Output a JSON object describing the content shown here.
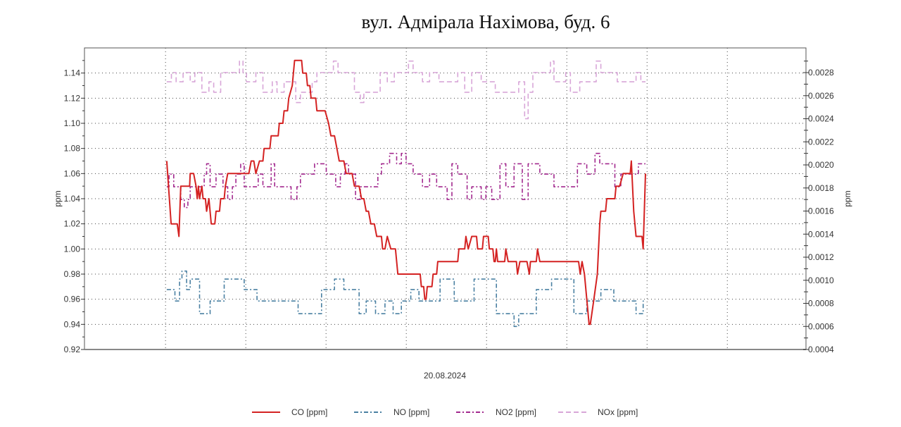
{
  "chart_data": {
    "type": "line",
    "title": "вул. Адмірала Нахімова, буд. 6",
    "xlabel": "20.08.2024",
    "ylabel_left": "ppm",
    "ylabel_right": "ppm",
    "xlim": [
      -10.1,
      79.8
    ],
    "x_grid": [
      0,
      10,
      20,
      30,
      40,
      50,
      60,
      70
    ],
    "ylim_left": [
      0.92,
      1.16
    ],
    "ylim_right": [
      0.0004,
      0.003014
    ],
    "left_ticks": [
      "0.92",
      "0.94",
      "0.96",
      "0.98",
      "1.00",
      "1.02",
      "1.04",
      "1.06",
      "1.08",
      "1.10",
      "1.12",
      "1.14"
    ],
    "right_ticks": [
      "0.0004",
      "0.0006",
      "0.0008",
      "0.0010",
      "0.0012",
      "0.0014",
      "0.0016",
      "0.0018",
      "0.0020",
      "0.0022",
      "0.0024",
      "0.0026",
      "0.0028"
    ],
    "grid": true,
    "legend_position": "bottom",
    "series": [
      {
        "name": "CO [ppm]",
        "axis": "left",
        "color": "#d42222",
        "style": "solid",
        "step": false,
        "points": [
          [
            0.15,
            1.07
          ],
          [
            0.7,
            1.02
          ],
          [
            1.46,
            1.02
          ],
          [
            1.67,
            1.01
          ],
          [
            1.9,
            1.05
          ],
          [
            3.0,
            1.05
          ],
          [
            3.07,
            1.06
          ],
          [
            3.5,
            1.06
          ],
          [
            3.8,
            1.05
          ],
          [
            3.95,
            1.04
          ],
          [
            4.1,
            1.05
          ],
          [
            4.24,
            1.04
          ],
          [
            4.53,
            1.05
          ],
          [
            4.68,
            1.04
          ],
          [
            4.97,
            1.04
          ],
          [
            5.12,
            1.03
          ],
          [
            5.41,
            1.04
          ],
          [
            5.7,
            1.02
          ],
          [
            6.14,
            1.02
          ],
          [
            6.29,
            1.03
          ],
          [
            6.73,
            1.03
          ],
          [
            6.87,
            1.04
          ],
          [
            7.31,
            1.04
          ],
          [
            7.46,
            1.05
          ],
          [
            7.75,
            1.06
          ],
          [
            10.38,
            1.06
          ],
          [
            10.67,
            1.07
          ],
          [
            11.0,
            1.07
          ],
          [
            11.26,
            1.06
          ],
          [
            11.7,
            1.07
          ],
          [
            12.13,
            1.07
          ],
          [
            12.28,
            1.08
          ],
          [
            13.0,
            1.08
          ],
          [
            13.16,
            1.09
          ],
          [
            14.04,
            1.09
          ],
          [
            14.18,
            1.1
          ],
          [
            14.62,
            1.1
          ],
          [
            14.77,
            1.11
          ],
          [
            15.2,
            1.11
          ],
          [
            15.35,
            1.12
          ],
          [
            15.79,
            1.13
          ],
          [
            16.08,
            1.15
          ],
          [
            16.96,
            1.15
          ],
          [
            17.1,
            1.14
          ],
          [
            17.54,
            1.14
          ],
          [
            17.69,
            1.13
          ],
          [
            17.98,
            1.13
          ],
          [
            18.13,
            1.12
          ],
          [
            18.71,
            1.12
          ],
          [
            18.86,
            1.11
          ],
          [
            19.88,
            1.11
          ],
          [
            20.32,
            1.1
          ],
          [
            20.61,
            1.09
          ],
          [
            21.05,
            1.09
          ],
          [
            21.35,
            1.08
          ],
          [
            21.64,
            1.07
          ],
          [
            22.22,
            1.07
          ],
          [
            22.51,
            1.06
          ],
          [
            23.25,
            1.06
          ],
          [
            23.54,
            1.05
          ],
          [
            24.12,
            1.05
          ],
          [
            24.42,
            1.04
          ],
          [
            24.71,
            1.04
          ],
          [
            25.0,
            1.03
          ],
          [
            25.29,
            1.03
          ],
          [
            25.58,
            1.02
          ],
          [
            26.02,
            1.02
          ],
          [
            26.32,
            1.01
          ],
          [
            26.9,
            1.01
          ],
          [
            27.05,
            1.0
          ],
          [
            27.34,
            1.0
          ],
          [
            27.63,
            1.01
          ],
          [
            28.07,
            1.0
          ],
          [
            28.65,
            1.0
          ],
          [
            28.95,
            0.98
          ],
          [
            31.73,
            0.98
          ],
          [
            31.88,
            0.97
          ],
          [
            32.17,
            0.97
          ],
          [
            32.31,
            0.96
          ],
          [
            32.46,
            0.96
          ],
          [
            32.61,
            0.97
          ],
          [
            33.19,
            0.97
          ],
          [
            33.34,
            0.98
          ],
          [
            33.78,
            0.98
          ],
          [
            33.92,
            0.99
          ],
          [
            36.41,
            0.99
          ],
          [
            36.55,
            1.0
          ],
          [
            37.28,
            1.0
          ],
          [
            37.43,
            1.01
          ],
          [
            37.72,
            1.0
          ],
          [
            38.16,
            1.01
          ],
          [
            38.75,
            1.01
          ],
          [
            38.89,
            1.0
          ],
          [
            39.48,
            1.0
          ],
          [
            39.62,
            1.01
          ],
          [
            40.21,
            1.01
          ],
          [
            40.35,
            1.0
          ],
          [
            40.79,
            1.0
          ],
          [
            40.94,
            0.99
          ],
          [
            41.09,
            0.99
          ],
          [
            41.23,
            1.0
          ],
          [
            41.38,
            0.99
          ],
          [
            42.26,
            0.99
          ],
          [
            42.4,
            1.0
          ],
          [
            42.69,
            0.99
          ],
          [
            43.72,
            0.99
          ],
          [
            43.86,
            0.98
          ],
          [
            44.16,
            0.99
          ],
          [
            45.03,
            0.99
          ],
          [
            45.33,
            0.98
          ],
          [
            45.47,
            0.99
          ],
          [
            46.2,
            0.99
          ],
          [
            46.35,
            1.0
          ],
          [
            46.64,
            0.99
          ],
          [
            51.47,
            0.99
          ],
          [
            51.67,
            0.98
          ],
          [
            51.9,
            0.99
          ],
          [
            52.2,
            0.98
          ],
          [
            52.49,
            0.96
          ],
          [
            52.78,
            0.94
          ],
          [
            52.93,
            0.94
          ],
          [
            53.37,
            0.96
          ],
          [
            53.8,
            0.98
          ],
          [
            54.1,
            1.02
          ],
          [
            54.24,
            1.03
          ],
          [
            54.83,
            1.03
          ],
          [
            54.98,
            1.04
          ],
          [
            55.99,
            1.04
          ],
          [
            56.14,
            1.05
          ],
          [
            56.58,
            1.05
          ],
          [
            57.02,
            1.06
          ],
          [
            57.9,
            1.06
          ],
          [
            58.04,
            1.07
          ],
          [
            58.34,
            1.03
          ],
          [
            58.63,
            1.01
          ],
          [
            59.36,
            1.01
          ],
          [
            59.51,
            1.0
          ],
          [
            59.8,
            1.06
          ]
        ]
      },
      {
        "name": "NO [ppm]",
        "axis": "right",
        "color": "#4a80a2",
        "style": "dashdot",
        "step": true,
        "points": [
          [
            0.15,
            0.00092
          ],
          [
            1.17,
            0.00082
          ],
          [
            1.75,
            0.00101
          ],
          [
            2.05,
            0.00108
          ],
          [
            2.63,
            0.00092
          ],
          [
            3.07,
            0.00101
          ],
          [
            4.24,
            0.00071
          ],
          [
            5.56,
            0.00082
          ],
          [
            7.31,
            0.00101
          ],
          [
            9.8,
            0.00092
          ],
          [
            11.4,
            0.00082
          ],
          [
            16.52,
            0.00071
          ],
          [
            19.44,
            0.00092
          ],
          [
            21.05,
            0.00101
          ],
          [
            22.22,
            0.00092
          ],
          [
            24.12,
            0.00071
          ],
          [
            25.0,
            0.00082
          ],
          [
            26.17,
            0.00071
          ],
          [
            27.34,
            0.00082
          ],
          [
            28.36,
            0.00071
          ],
          [
            29.39,
            0.00082
          ],
          [
            30.56,
            0.00092
          ],
          [
            31.58,
            0.00082
          ],
          [
            34.21,
            0.00101
          ],
          [
            35.97,
            0.00082
          ],
          [
            38.45,
            0.00101
          ],
          [
            41.23,
            0.00071
          ],
          [
            43.43,
            0.0006
          ],
          [
            44.01,
            0.00071
          ],
          [
            46.2,
            0.00092
          ],
          [
            48.1,
            0.00101
          ],
          [
            50.88,
            0.00071
          ],
          [
            52.49,
            0.00082
          ],
          [
            54.24,
            0.00092
          ],
          [
            55.86,
            0.00082
          ],
          [
            58.63,
            0.00071
          ],
          [
            59.51,
            0.00082
          ],
          [
            59.8,
            0.00082
          ]
        ]
      },
      {
        "name": "NO2 [ppm]",
        "axis": "right",
        "color": "#a2288e",
        "style": "dashdot",
        "step": true,
        "points": [
          [
            0.15,
            0.00181
          ],
          [
            0.44,
            0.00192
          ],
          [
            1.02,
            0.00181
          ],
          [
            1.9,
            0.0017
          ],
          [
            2.34,
            0.00163
          ],
          [
            2.78,
            0.0017
          ],
          [
            3.07,
            0.00181
          ],
          [
            4.82,
            0.00192
          ],
          [
            5.12,
            0.00201
          ],
          [
            5.56,
            0.00181
          ],
          [
            6.29,
            0.00192
          ],
          [
            7.16,
            0.00181
          ],
          [
            7.75,
            0.0017
          ],
          [
            8.33,
            0.00181
          ],
          [
            8.77,
            0.00192
          ],
          [
            9.36,
            0.00201
          ],
          [
            9.8,
            0.00181
          ],
          [
            11.55,
            0.00192
          ],
          [
            12.13,
            0.00181
          ],
          [
            13.16,
            0.00201
          ],
          [
            13.6,
            0.00181
          ],
          [
            15.64,
            0.0017
          ],
          [
            16.37,
            0.00181
          ],
          [
            16.81,
            0.00192
          ],
          [
            18.57,
            0.00201
          ],
          [
            20.03,
            0.00192
          ],
          [
            21.2,
            0.00181
          ],
          [
            21.78,
            0.00192
          ],
          [
            22.37,
            0.00201
          ],
          [
            22.81,
            0.00192
          ],
          [
            23.68,
            0.0017
          ],
          [
            24.27,
            0.00181
          ],
          [
            26.46,
            0.00192
          ],
          [
            26.9,
            0.00201
          ],
          [
            27.92,
            0.0021
          ],
          [
            28.8,
            0.00201
          ],
          [
            29.39,
            0.0021
          ],
          [
            29.97,
            0.00201
          ],
          [
            30.85,
            0.00192
          ],
          [
            32.02,
            0.00181
          ],
          [
            32.9,
            0.00192
          ],
          [
            33.78,
            0.00181
          ],
          [
            35.09,
            0.0017
          ],
          [
            35.68,
            0.00201
          ],
          [
            36.41,
            0.00192
          ],
          [
            37.58,
            0.0017
          ],
          [
            38.16,
            0.00181
          ],
          [
            39.33,
            0.0017
          ],
          [
            39.92,
            0.00181
          ],
          [
            40.65,
            0.0017
          ],
          [
            41.67,
            0.00201
          ],
          [
            42.4,
            0.00181
          ],
          [
            43.43,
            0.00201
          ],
          [
            44.45,
            0.0017
          ],
          [
            45.18,
            0.00201
          ],
          [
            46.64,
            0.00192
          ],
          [
            48.4,
            0.00181
          ],
          [
            51.32,
            0.00201
          ],
          [
            52.49,
            0.00192
          ],
          [
            53.51,
            0.0021
          ],
          [
            54.1,
            0.00201
          ],
          [
            55.99,
            0.00181
          ],
          [
            56.73,
            0.00192
          ],
          [
            58.92,
            0.00201
          ],
          [
            59.8,
            0.00201
          ]
        ]
      },
      {
        "name": "NOx [ppm]",
        "axis": "right",
        "color": "#d8a6d8",
        "style": "dashed",
        "step": true,
        "points": [
          [
            0.15,
            0.00272
          ],
          [
            0.73,
            0.0028
          ],
          [
            1.32,
            0.00272
          ],
          [
            2.19,
            0.0028
          ],
          [
            3.07,
            0.00272
          ],
          [
            3.65,
            0.0028
          ],
          [
            4.53,
            0.00263
          ],
          [
            5.41,
            0.00272
          ],
          [
            6.0,
            0.00263
          ],
          [
            6.87,
            0.0028
          ],
          [
            9.21,
            0.0029
          ],
          [
            9.65,
            0.0028
          ],
          [
            10.09,
            0.00272
          ],
          [
            11.26,
            0.0028
          ],
          [
            12.13,
            0.00263
          ],
          [
            13.3,
            0.00272
          ],
          [
            13.89,
            0.00263
          ],
          [
            14.77,
            0.00272
          ],
          [
            16.23,
            0.00254
          ],
          [
            16.81,
            0.00263
          ],
          [
            18.27,
            0.00272
          ],
          [
            18.86,
            0.0028
          ],
          [
            20.91,
            0.0029
          ],
          [
            21.49,
            0.0028
          ],
          [
            23.54,
            0.00263
          ],
          [
            24.27,
            0.00254
          ],
          [
            24.71,
            0.00263
          ],
          [
            26.75,
            0.0028
          ],
          [
            27.63,
            0.00272
          ],
          [
            28.51,
            0.0028
          ],
          [
            30.27,
            0.0029
          ],
          [
            30.85,
            0.0028
          ],
          [
            32.02,
            0.00272
          ],
          [
            32.9,
            0.0028
          ],
          [
            34.07,
            0.00272
          ],
          [
            36.41,
            0.0028
          ],
          [
            37.28,
            0.00263
          ],
          [
            38.16,
            0.0028
          ],
          [
            39.33,
            0.00272
          ],
          [
            41.09,
            0.00263
          ],
          [
            44.01,
            0.00272
          ],
          [
            44.74,
            0.0024
          ],
          [
            45.18,
            0.00263
          ],
          [
            45.77,
            0.0028
          ],
          [
            47.96,
            0.0029
          ],
          [
            48.4,
            0.00272
          ],
          [
            49.86,
            0.0028
          ],
          [
            50.44,
            0.00263
          ],
          [
            51.61,
            0.00272
          ],
          [
            53.66,
            0.0029
          ],
          [
            54.24,
            0.0028
          ],
          [
            56.29,
            0.00272
          ],
          [
            58.63,
            0.0028
          ],
          [
            59.22,
            0.00272
          ],
          [
            59.8,
            0.00272
          ]
        ]
      }
    ]
  }
}
